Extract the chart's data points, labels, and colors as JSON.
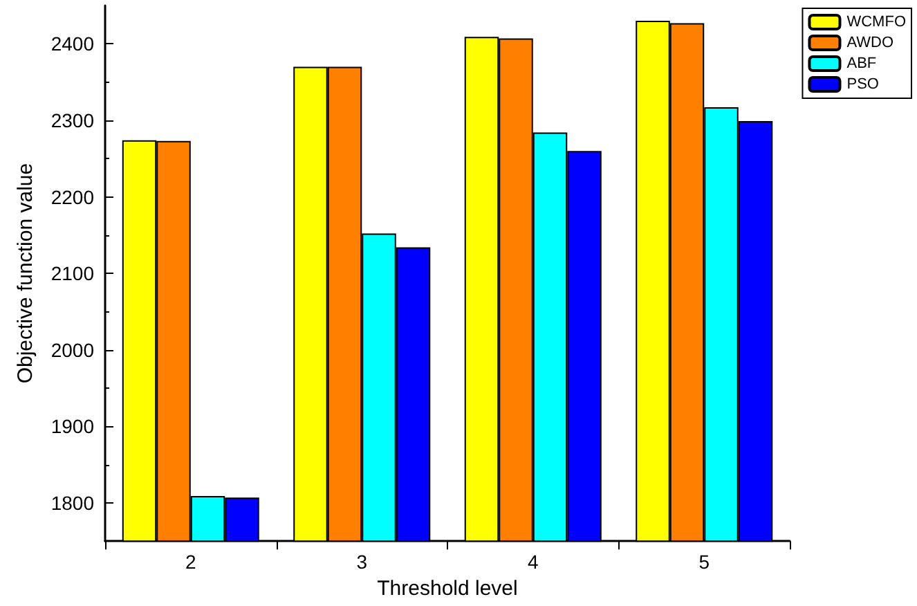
{
  "chart_data": {
    "type": "bar",
    "xlabel": "Threshold level",
    "ylabel": "Objective function value",
    "categories": [
      "2",
      "3",
      "4",
      "5"
    ],
    "series": [
      {
        "name": "WCMFO",
        "color": "#ffff00",
        "values": [
          2274,
          2370,
          2409,
          2430
        ]
      },
      {
        "name": "AWDO",
        "color": "#ff8000",
        "values": [
          2273,
          2370,
          2407,
          2427
        ]
      },
      {
        "name": "ABF",
        "color": "#00ffff",
        "values": [
          1809,
          2152,
          2284,
          2317
        ]
      },
      {
        "name": "PSO",
        "color": "#0000ff",
        "values": [
          1807,
          2134,
          2260,
          2299
        ]
      }
    ],
    "ylim": [
      1750,
      2450
    ],
    "yticks": [
      1800,
      1900,
      2000,
      2100,
      2200,
      2300,
      2400
    ],
    "grid": false,
    "legend": "top right"
  }
}
